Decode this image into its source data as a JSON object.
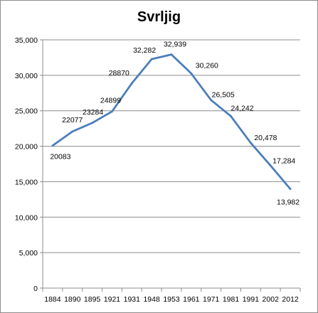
{
  "chart_data": {
    "type": "line",
    "title": "Svrljig",
    "xlabel": "",
    "ylabel": "",
    "x": [
      "1884",
      "1890",
      "1895",
      "1921",
      "1931",
      "1948",
      "1953",
      "1961",
      "1971",
      "1981",
      "1991",
      "2002",
      "2012"
    ],
    "series": [
      {
        "values": [
          20083,
          22077,
          23284,
          24899,
          28870,
          32282,
          32939,
          30260,
          26505,
          24242,
          20478,
          17284,
          13982
        ],
        "labels": [
          "20083",
          "22077",
          "23284",
          "24899",
          "28870",
          "32,282",
          "32,939",
          "30,260",
          "26,505",
          "24,242",
          "20,478",
          "17,284",
          "13,982"
        ],
        "color": "#4a7ebb"
      }
    ],
    "ylim": [
      0,
      35000
    ],
    "yticks": [
      0,
      5000,
      10000,
      15000,
      20000,
      25000,
      30000,
      35000
    ],
    "ytick_labels": [
      "0",
      "5,000",
      "10,000",
      "15,000",
      "20,000",
      "25,000",
      "30,000",
      "35,000"
    ],
    "grid": true,
    "legend": "none"
  }
}
